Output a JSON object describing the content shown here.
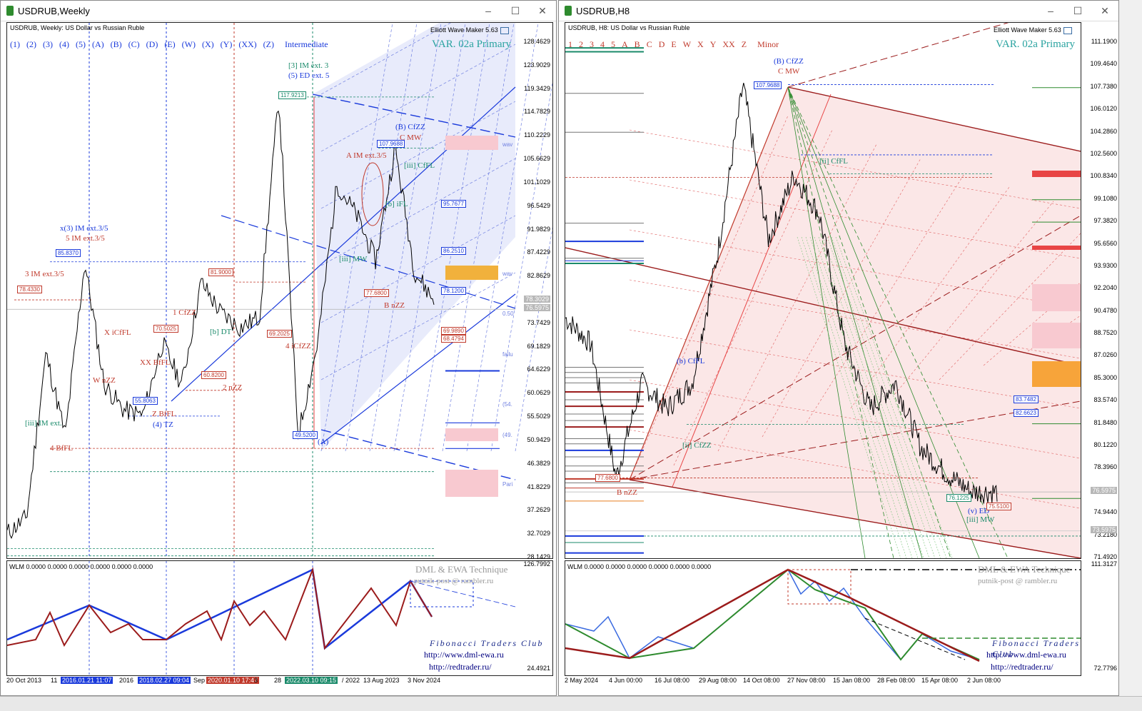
{
  "left": {
    "title": "USDRUB,Weekly",
    "header": "USDRUB, Weekly:  US Dollar vs Russian Ruble",
    "ewm": "Elliott Wave Maker 5.63",
    "degree_label": "Intermediate",
    "var_label": "VAR. 02a Primary",
    "wave_buttons": [
      "(1)",
      "(2)",
      "(3)",
      "(4)",
      "(5)",
      "(A)",
      "(B)",
      "(C)",
      "(D)",
      "(E)",
      "(W)",
      "(X)",
      "(Y)",
      "(XX)",
      "(Z)"
    ],
    "yaxis": [
      "128.4629",
      "123.9029",
      "119.3429",
      "114.7829",
      "110.2229",
      "105.6629",
      "101.1029",
      "96.5429",
      "91.9829",
      "87.4229",
      "82.8629",
      "78.3029",
      "73.7429",
      "69.1829",
      "64.6229",
      "60.0629",
      "55.5029",
      "50.9429",
      "46.3829",
      "41.8229",
      "37.2629",
      "32.7029",
      "28.1429"
    ],
    "yaxis_tags": [
      "78.3029",
      "76.5975"
    ],
    "xaxis": [
      {
        "t": "20 Oct 2013",
        "hl": false
      },
      {
        "t": "11",
        "hl": false
      },
      {
        "t": "2016.01.21 11:07",
        "hl": "#1a3adb"
      },
      {
        "t": "2016",
        "hl": false
      },
      {
        "t": "2018.02.27 09:04",
        "hl": "#1a3adb"
      },
      {
        "t": "Sep",
        "hl": false
      },
      {
        "t": "2020.01.10 17:47",
        "hl": "#c0392b"
      },
      {
        "t": "3",
        "hl": false
      },
      {
        "t": "28",
        "hl": false
      },
      {
        "t": "2022.03.10 09:15",
        "hl": "#1a8a6a"
      },
      {
        "t": "/ 2022",
        "hl": false
      },
      {
        "t": "13 Aug 2023",
        "hl": false
      },
      {
        "t": "3 Nov 2024",
        "hl": false
      }
    ],
    "price_tags": [
      {
        "t": "117.9213",
        "c": "#1a8a6a"
      },
      {
        "t": "107.9688",
        "c": "#1a3adb"
      },
      {
        "t": "95.7677",
        "c": "#1a3adb"
      },
      {
        "t": "86.2510",
        "c": "#1a3adb"
      },
      {
        "t": "85.8370",
        "c": "#1a3adb"
      },
      {
        "t": "81.9000",
        "c": "#c0392b"
      },
      {
        "t": "78.4330",
        "c": "#c0392b"
      },
      {
        "t": "78.1200",
        "c": "#1a3adb"
      },
      {
        "t": "77.6800",
        "c": "#c0392b"
      },
      {
        "t": "70.5025",
        "c": "#c0392b"
      },
      {
        "t": "69.2025",
        "c": "#c0392b"
      },
      {
        "t": "60.8200",
        "c": "#c0392b"
      },
      {
        "t": "55.8063",
        "c": "#1a3adb"
      },
      {
        "t": "49.5200",
        "c": "#1a3adb"
      },
      {
        "t": "69.9890",
        "c": "#c0392b"
      },
      {
        "t": "68.4794",
        "c": "#c0392b"
      }
    ],
    "wave_labels": [
      {
        "t": "[3] IM ext. 3",
        "c": "#1a8a6a"
      },
      {
        "t": "(5) ED ext. 5",
        "c": "#1a3adb"
      },
      {
        "t": "(B) CfZZ",
        "c": "#1a3adb"
      },
      {
        "t": "C MW",
        "c": "#c0392b"
      },
      {
        "t": "A IM ext.3/5",
        "c": "#c0392b"
      },
      {
        "t": "x(3) IM ext.3/5",
        "c": "#1a3adb"
      },
      {
        "t": "5 IM ext.3/5",
        "c": "#c0392b"
      },
      {
        "t": "3 IM ext.3/5",
        "c": "#c0392b"
      },
      {
        "t": "1 CfZZ",
        "c": "#c0392b"
      },
      {
        "t": "X iCfFL",
        "c": "#c0392b"
      },
      {
        "t": "XX BfFL",
        "c": "#c0392b"
      },
      {
        "t": "W nZZ",
        "c": "#c0392b"
      },
      {
        "t": "Z BfFL",
        "c": "#c0392b"
      },
      {
        "t": "(4) TZ",
        "c": "#1a3adb"
      },
      {
        "t": "4 BfFL",
        "c": "#c0392b"
      },
      {
        "t": "2 nZZ",
        "c": "#c0392b"
      },
      {
        "t": "4 iCfZZ",
        "c": "#c0392b"
      },
      {
        "t": "B nZZ",
        "c": "#c0392b"
      },
      {
        "t": "(A)",
        "c": "#1a3adb"
      },
      {
        "t": "[iii] IM ext.",
        "c": "#1a8a6a"
      },
      {
        "t": "[iii] MW",
        "c": "#1a8a6a"
      },
      {
        "t": "[b] iFL",
        "c": "#1a8a6a"
      },
      {
        "t": "[iii] CfFL",
        "c": "#1a8a6a"
      },
      {
        "t": "[b] DT",
        "c": "#1a8a6a"
      }
    ],
    "side_notes": [
      "wav",
      "wav",
      "0.50",
      "failu",
      "(54.",
      "(49.",
      "Pari"
    ],
    "wlm": "WLM 0.0000 0.0000 0.0000 0.0000 0.0000 0.0000",
    "sub_yaxis": [
      "126.7992",
      "24.4921"
    ],
    "dml": "DML & EWA Technique",
    "rambler": "putnik-post @ rambler.ru",
    "fib": "Fibonacci  Traders  Club",
    "url1": "http://www.dml-ewa.ru",
    "url2": "http://redtrader.ru/"
  },
  "right": {
    "title": "USDRUB,H8",
    "header": "USDRUB, H8:  US Dollar vs Russian Ruble",
    "ewm": "Elliott Wave Maker 5.63",
    "degree_label": "Minor",
    "var_label": "VAR. 02a Primary",
    "wave_buttons": [
      "1",
      "2",
      "3",
      "4",
      "5",
      "A",
      "B",
      "C",
      "D",
      "E",
      "W",
      "X",
      "Y",
      "XX",
      "Z"
    ],
    "yaxis": [
      "111.1900",
      "109.4640",
      "107.7380",
      "106.0120",
      "104.2860",
      "102.5600",
      "100.8340",
      "99.1080",
      "97.3820",
      "95.6560",
      "93.9300",
      "92.2040",
      "90.4780",
      "88.7520",
      "87.0260",
      "85.3000",
      "83.5740",
      "81.8480",
      "80.1220",
      "78.3960",
      "76.6700",
      "74.9440",
      "73.2180",
      "71.4920"
    ],
    "yaxis_tags": [
      "73.5975",
      "76.5975"
    ],
    "xaxis": [
      "2 May 2024",
      "4 Jun 00:00",
      "16 Jul 08:00",
      "29 Aug 08:00",
      "14 Oct 08:00",
      "27 Nov 08:00",
      "15 Jan 08:00",
      "28 Feb 08:00",
      "15 Apr 08:00",
      "2 Jun 08:00"
    ],
    "price_tags": [
      {
        "t": "107.9688",
        "c": "#1a3adb"
      },
      {
        "t": "83.7482",
        "c": "#1a3adb"
      },
      {
        "t": "82.6623",
        "c": "#1a3adb"
      },
      {
        "t": "77.6800",
        "c": "#c0392b"
      },
      {
        "t": "76.1225",
        "c": "#1a8a6a"
      },
      {
        "t": "75.5100",
        "c": "#c0392b"
      }
    ],
    "wave_labels": [
      {
        "t": "(B) CfZZ",
        "c": "#1a3adb"
      },
      {
        "t": "C MW",
        "c": "#c0392b"
      },
      {
        "t": "B nZZ",
        "c": "#c0392b"
      },
      {
        "t": "[ii] CfZZ",
        "c": "#1a8a6a"
      },
      {
        "t": "(b) CfFL",
        "c": "#1a3adb"
      },
      {
        "t": "[ii] CfFL",
        "c": "#1a8a6a"
      },
      {
        "t": "(v) ED",
        "c": "#1a3adb"
      },
      {
        "t": "[iii] MW",
        "c": "#1a8a6a"
      }
    ],
    "wlm": "WLM 0.0000 0.0000 0.0000 0.0000 0.0000 0.0000",
    "sub_yaxis": [
      "111.3127",
      "72.7796"
    ],
    "dml": "DML & EWA Technique",
    "rambler": "putnik-post @ rambler.ru",
    "fib": "Fibonacci  Traders  Club",
    "url1": "http://www.dml-ewa.ru",
    "url2": "http://redtrader.ru/"
  },
  "chart_data": [
    {
      "type": "line",
      "title": "USDRUB, Weekly:  US Dollar vs Russian Ruble",
      "xlabel": "",
      "ylabel": "",
      "ylim": [
        28.1429,
        128.4629
      ],
      "x": [
        "2013-10",
        "2014-06",
        "2014-12",
        "2015-06",
        "2016-01",
        "2016-06",
        "2017-06",
        "2018-02",
        "2019-01",
        "2019-06",
        "2020-03",
        "2020-10",
        "2021-06",
        "2022-01",
        "2022-03",
        "2022-06",
        "2023-01",
        "2023-08",
        "2023-10",
        "2024-06",
        "2024-11",
        "2025-03",
        "2025-06"
      ],
      "series": [
        {
          "values": [
            33,
            36,
            68,
            52,
            85.8,
            62,
            57,
            56,
            70,
            62,
            81.9,
            76,
            73,
            75,
            117.9,
            52,
            70,
            101,
            95,
            86,
            108,
            84,
            78.3
          ]
        }
      ]
    },
    {
      "type": "line",
      "title": "USDRUB, H8:  US Dollar vs Russian Ruble",
      "xlabel": "",
      "ylabel": "",
      "ylim": [
        71.492,
        111.19
      ],
      "x": [
        "2024-05-02",
        "2024-06-04",
        "2024-06-20",
        "2024-07-16",
        "2024-08-10",
        "2024-08-29",
        "2024-10-14",
        "2024-11-27",
        "2024-12-10",
        "2024-12-25",
        "2025-01-15",
        "2025-02-10",
        "2025-02-28",
        "2025-03-20",
        "2025-04-15",
        "2025-05-10",
        "2025-06-02",
        "2025-06-20"
      ],
      "series": [
        {
          "values": [
            90,
            88,
            77.68,
            85,
            83,
            85,
            95,
            107.97,
            96,
            101,
            98,
            88,
            83,
            85,
            80,
            78,
            76.6,
            76.6
          ]
        }
      ]
    }
  ]
}
